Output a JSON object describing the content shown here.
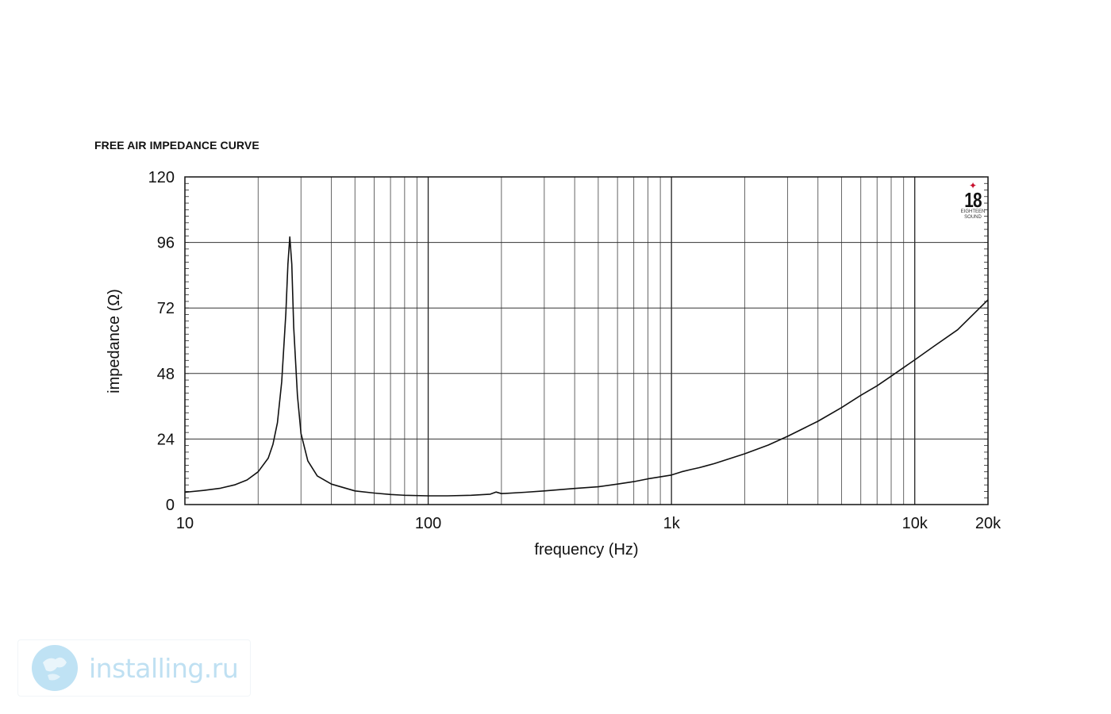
{
  "chart_data": {
    "type": "line",
    "title": "FREE AIR IMPEDANCE CURVE",
    "xlabel": "frequency (Hz)",
    "ylabel": "impedance (Ω)",
    "x_scale": "log",
    "xlim": [
      10,
      20000
    ],
    "ylim": [
      0,
      120
    ],
    "x_ticks": [
      {
        "value": 10,
        "label": "10"
      },
      {
        "value": 100,
        "label": "100"
      },
      {
        "value": 1000,
        "label": "1k"
      },
      {
        "value": 10000,
        "label": "10k"
      },
      {
        "value": 20000,
        "label": "20k"
      }
    ],
    "y_ticks": [
      {
        "value": 0,
        "label": "0"
      },
      {
        "value": 24,
        "label": "24"
      },
      {
        "value": 48,
        "label": "48"
      },
      {
        "value": 72,
        "label": "72"
      },
      {
        "value": 96,
        "label": "96"
      },
      {
        "value": 120,
        "label": "120"
      }
    ],
    "grid": true,
    "series": [
      {
        "x": [
          10,
          12,
          14,
          16,
          18,
          20,
          22,
          23,
          24,
          25,
          26,
          26.5,
          27,
          27.5,
          28,
          29,
          30,
          32,
          35,
          40,
          50,
          60,
          70,
          80,
          100,
          120,
          150,
          180,
          190,
          200,
          250,
          300,
          400,
          500,
          600,
          700,
          800,
          1000,
          1100,
          1200,
          1300,
          1500,
          2000,
          2500,
          3000,
          4000,
          5000,
          6000,
          7000,
          8000,
          10000,
          12000,
          15000,
          20000
        ],
        "y": [
          4.5,
          5.2,
          6.0,
          7.2,
          9.0,
          12.0,
          17.0,
          22.0,
          30.0,
          45.0,
          70.0,
          88.0,
          98.0,
          88.0,
          65.0,
          40.0,
          26.0,
          16.0,
          10.5,
          7.5,
          5.0,
          4.2,
          3.7,
          3.4,
          3.2,
          3.2,
          3.4,
          3.8,
          4.6,
          4.0,
          4.5,
          5.0,
          5.9,
          6.5,
          7.5,
          8.4,
          9.4,
          10.8,
          12.0,
          12.8,
          13.5,
          15.0,
          18.6,
          21.8,
          25.0,
          30.5,
          35.5,
          40.0,
          43.5,
          47.0,
          53.0,
          58.0,
          64.0,
          75.0
        ]
      }
    ]
  },
  "brand_logo": {
    "number": "18",
    "line1": "EIGHTEEN",
    "line2": "SOUND",
    "accent_color": "#c8102e"
  },
  "watermark": {
    "text": "installing.ru",
    "color": "#bfe0f2"
  }
}
